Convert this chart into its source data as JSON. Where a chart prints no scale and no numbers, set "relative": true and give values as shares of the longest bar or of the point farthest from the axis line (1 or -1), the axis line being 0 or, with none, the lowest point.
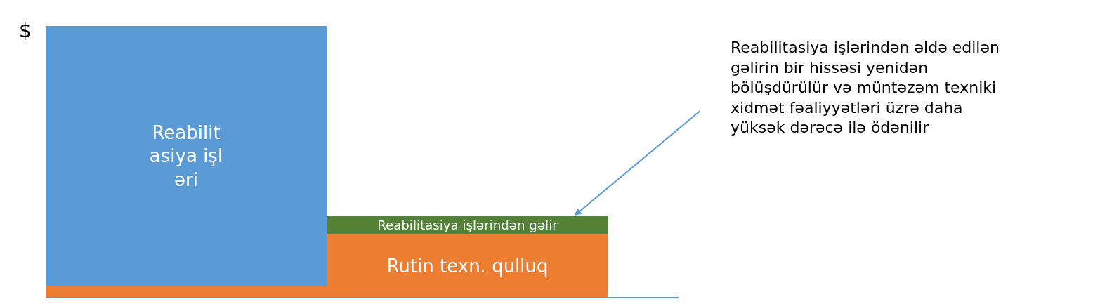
{
  "chart_data": {
    "type": "bar",
    "relative": true,
    "stacked": true,
    "ylabel": "$",
    "categories": [
      null,
      null
    ],
    "series": [
      {
        "name": "Rutin texn. qulluq",
        "color": "#ed7d31",
        "values": [
          0.04,
          0.23
        ]
      },
      {
        "name": "Reabilit\nasiya işl\nəri",
        "color": "#5b9bd5",
        "values": [
          0.96,
          null
        ]
      },
      {
        "name": "Reabilitasiya işlərindən gəlir",
        "color": "#548235",
        "values": [
          null,
          0.07
        ]
      }
    ],
    "annotations": [
      "Reabilitasiya işlərindən əldə edilən\ngəlirin bir hissəsi yenidən\nbölüşdürülür və müntəzəm texniki\nxidmət fəaliyyətləri üzrə daha\nyüksək dərəcə ilə ödənilir"
    ],
    "legend": false
  }
}
